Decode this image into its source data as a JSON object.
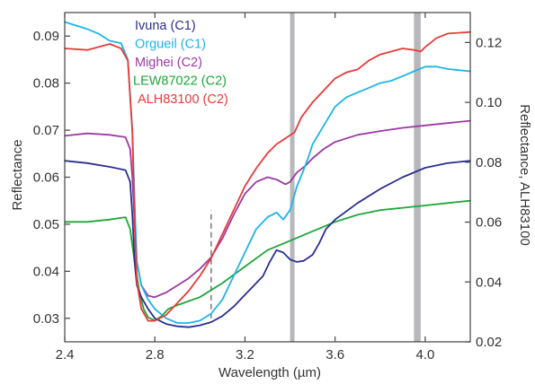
{
  "chart_data": {
    "type": "line",
    "title": "",
    "xlabel": "Wavelength (µm)",
    "ylabel": "Reflectance",
    "ylabel_right": "Reflectance, ALH83100",
    "xlim": [
      2.4,
      4.2
    ],
    "ylim": [
      0.025,
      0.095
    ],
    "ylim_right": [
      0.02,
      0.13
    ],
    "x_ticks": [
      2.4,
      2.8,
      3.2,
      3.6,
      4.0
    ],
    "x_tick_labels": [
      "2.4",
      "2.8",
      "3.2",
      "3.6",
      "4.0"
    ],
    "y_ticks": [
      0.03,
      0.04,
      0.05,
      0.06,
      0.07,
      0.08,
      0.09
    ],
    "y_tick_labels": [
      "0.03",
      "0.04",
      "0.05",
      "0.06",
      "0.07",
      "0.08",
      "0.09"
    ],
    "y_right_ticks": [
      0.02,
      0.04,
      0.06,
      0.08,
      0.1,
      0.12
    ],
    "y_right_tick_labels": [
      "0.02",
      "0.04",
      "0.06",
      "0.08",
      "0.10",
      "0.12"
    ],
    "grid": false,
    "legend_position": "top-left",
    "bands": [
      [
        3.4,
        3.42
      ],
      [
        3.95,
        3.98
      ]
    ],
    "dashed_line_x": 3.05,
    "dashed_line_range": [
      0.03,
      0.053
    ],
    "series": [
      {
        "name": "Ivuna (C1)",
        "color": "#2b2f8f",
        "axis": "left",
        "points": [
          [
            2.4,
            0.0635
          ],
          [
            2.5,
            0.063
          ],
          [
            2.6,
            0.0622
          ],
          [
            2.67,
            0.0615
          ],
          [
            2.69,
            0.059
          ],
          [
            2.7,
            0.052
          ],
          [
            2.71,
            0.042
          ],
          [
            2.72,
            0.037
          ],
          [
            2.74,
            0.0345
          ],
          [
            2.77,
            0.032
          ],
          [
            2.8,
            0.03
          ],
          [
            2.85,
            0.0288
          ],
          [
            2.9,
            0.0283
          ],
          [
            2.95,
            0.0281
          ],
          [
            3.0,
            0.0285
          ],
          [
            3.05,
            0.0292
          ],
          [
            3.1,
            0.0305
          ],
          [
            3.15,
            0.0325
          ],
          [
            3.2,
            0.035
          ],
          [
            3.25,
            0.0375
          ],
          [
            3.28,
            0.039
          ],
          [
            3.31,
            0.042
          ],
          [
            3.34,
            0.0445
          ],
          [
            3.37,
            0.044
          ],
          [
            3.4,
            0.0425
          ],
          [
            3.43,
            0.042
          ],
          [
            3.46,
            0.0422
          ],
          [
            3.5,
            0.0435
          ],
          [
            3.53,
            0.046
          ],
          [
            3.56,
            0.049
          ],
          [
            3.6,
            0.051
          ],
          [
            3.7,
            0.0545
          ],
          [
            3.8,
            0.0575
          ],
          [
            3.9,
            0.06
          ],
          [
            4.0,
            0.062
          ],
          [
            4.1,
            0.063
          ],
          [
            4.2,
            0.0635
          ]
        ]
      },
      {
        "name": "Orgueil (C1)",
        "color": "#1fb4e8",
        "axis": "left",
        "points": [
          [
            2.4,
            0.093
          ],
          [
            2.5,
            0.0915
          ],
          [
            2.55,
            0.0905
          ],
          [
            2.6,
            0.089
          ],
          [
            2.65,
            0.0885
          ],
          [
            2.68,
            0.085
          ],
          [
            2.7,
            0.07
          ],
          [
            2.71,
            0.055
          ],
          [
            2.72,
            0.042
          ],
          [
            2.74,
            0.037
          ],
          [
            2.77,
            0.034
          ],
          [
            2.8,
            0.032
          ],
          [
            2.85,
            0.03
          ],
          [
            2.9,
            0.029
          ],
          [
            2.95,
            0.029
          ],
          [
            3.0,
            0.0295
          ],
          [
            3.05,
            0.031
          ],
          [
            3.1,
            0.034
          ],
          [
            3.15,
            0.039
          ],
          [
            3.2,
            0.044
          ],
          [
            3.25,
            0.049
          ],
          [
            3.3,
            0.0515
          ],
          [
            3.34,
            0.0525
          ],
          [
            3.37,
            0.051
          ],
          [
            3.4,
            0.053
          ],
          [
            3.43,
            0.058
          ],
          [
            3.46,
            0.0615
          ],
          [
            3.48,
            0.064
          ],
          [
            3.5,
            0.067
          ],
          [
            3.55,
            0.071
          ],
          [
            3.6,
            0.075
          ],
          [
            3.65,
            0.077
          ],
          [
            3.7,
            0.078
          ],
          [
            3.75,
            0.079
          ],
          [
            3.8,
            0.08
          ],
          [
            3.85,
            0.0805
          ],
          [
            3.9,
            0.0815
          ],
          [
            3.95,
            0.0825
          ],
          [
            4.0,
            0.0835
          ],
          [
            4.05,
            0.0835
          ],
          [
            4.1,
            0.083
          ],
          [
            4.2,
            0.0825
          ]
        ]
      },
      {
        "name": "Mighei (C2)",
        "color": "#9b3ba3",
        "axis": "left",
        "points": [
          [
            2.4,
            0.0688
          ],
          [
            2.5,
            0.0693
          ],
          [
            2.6,
            0.069
          ],
          [
            2.67,
            0.0685
          ],
          [
            2.69,
            0.066
          ],
          [
            2.7,
            0.06
          ],
          [
            2.71,
            0.05
          ],
          [
            2.72,
            0.042
          ],
          [
            2.74,
            0.037
          ],
          [
            2.77,
            0.0348
          ],
          [
            2.8,
            0.0345
          ],
          [
            2.85,
            0.0355
          ],
          [
            2.9,
            0.037
          ],
          [
            2.95,
            0.0385
          ],
          [
            3.0,
            0.0405
          ],
          [
            3.05,
            0.043
          ],
          [
            3.1,
            0.047
          ],
          [
            3.15,
            0.052
          ],
          [
            3.2,
            0.0565
          ],
          [
            3.25,
            0.059
          ],
          [
            3.3,
            0.06
          ],
          [
            3.34,
            0.0595
          ],
          [
            3.38,
            0.0585
          ],
          [
            3.4,
            0.059
          ],
          [
            3.43,
            0.061
          ],
          [
            3.47,
            0.0625
          ],
          [
            3.5,
            0.064
          ],
          [
            3.55,
            0.066
          ],
          [
            3.6,
            0.0675
          ],
          [
            3.7,
            0.069
          ],
          [
            3.8,
            0.0698
          ],
          [
            3.9,
            0.0705
          ],
          [
            4.0,
            0.071
          ],
          [
            4.1,
            0.0715
          ],
          [
            4.2,
            0.072
          ]
        ]
      },
      {
        "name": "LEW87022 (C2)",
        "color": "#1ea63a",
        "axis": "left",
        "points": [
          [
            2.4,
            0.0505
          ],
          [
            2.5,
            0.0505
          ],
          [
            2.6,
            0.051
          ],
          [
            2.67,
            0.0515
          ],
          [
            2.69,
            0.049
          ],
          [
            2.71,
            0.042
          ],
          [
            2.73,
            0.036
          ],
          [
            2.75,
            0.032
          ],
          [
            2.77,
            0.0302
          ],
          [
            2.8,
            0.0295
          ],
          [
            2.83,
            0.0305
          ],
          [
            2.86,
            0.032
          ],
          [
            2.9,
            0.0328
          ],
          [
            3.0,
            0.0345
          ],
          [
            3.1,
            0.0375
          ],
          [
            3.2,
            0.041
          ],
          [
            3.3,
            0.0445
          ],
          [
            3.4,
            0.0465
          ],
          [
            3.5,
            0.0485
          ],
          [
            3.6,
            0.0505
          ],
          [
            3.7,
            0.052
          ],
          [
            3.8,
            0.053
          ],
          [
            3.9,
            0.0535
          ],
          [
            4.0,
            0.054
          ],
          [
            4.1,
            0.0545
          ],
          [
            4.2,
            0.055
          ]
        ]
      },
      {
        "name": "ALH83100 (C2)",
        "color": "#e83a3a",
        "axis": "right",
        "points": [
          [
            2.4,
            0.118
          ],
          [
            2.5,
            0.1175
          ],
          [
            2.55,
            0.1185
          ],
          [
            2.6,
            0.1195
          ],
          [
            2.65,
            0.118
          ],
          [
            2.68,
            0.114
          ],
          [
            2.7,
            0.09
          ],
          [
            2.71,
            0.06
          ],
          [
            2.72,
            0.04
          ],
          [
            2.74,
            0.031
          ],
          [
            2.77,
            0.027
          ],
          [
            2.8,
            0.027
          ],
          [
            2.85,
            0.029
          ],
          [
            2.9,
            0.033
          ],
          [
            2.95,
            0.037
          ],
          [
            3.0,
            0.042
          ],
          [
            3.05,
            0.048
          ],
          [
            3.1,
            0.056
          ],
          [
            3.15,
            0.064
          ],
          [
            3.2,
            0.072
          ],
          [
            3.25,
            0.078
          ],
          [
            3.3,
            0.083
          ],
          [
            3.34,
            0.086
          ],
          [
            3.38,
            0.088
          ],
          [
            3.42,
            0.09
          ],
          [
            3.45,
            0.095
          ],
          [
            3.5,
            0.1
          ],
          [
            3.55,
            0.104
          ],
          [
            3.6,
            0.108
          ],
          [
            3.65,
            0.11
          ],
          [
            3.7,
            0.111
          ],
          [
            3.75,
            0.114
          ],
          [
            3.8,
            0.116
          ],
          [
            3.85,
            0.117
          ],
          [
            3.9,
            0.118
          ],
          [
            3.95,
            0.1175
          ],
          [
            3.98,
            0.117
          ],
          [
            4.0,
            0.1185
          ],
          [
            4.05,
            0.1215
          ],
          [
            4.1,
            0.123
          ],
          [
            4.2,
            0.1235
          ]
        ]
      }
    ]
  }
}
